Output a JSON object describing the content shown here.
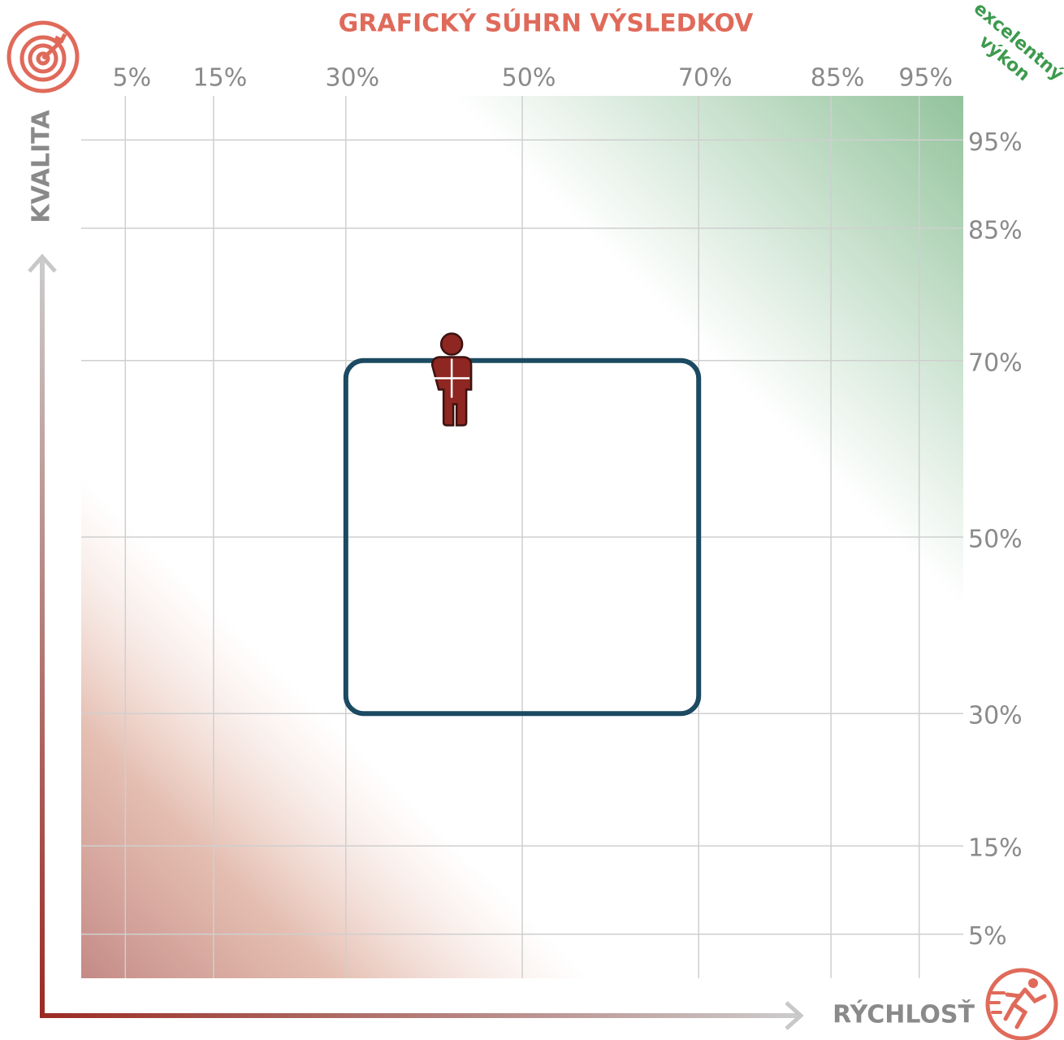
{
  "chart_data": {
    "type": "scatter",
    "title": "GRAFICKÝ SÚHRN VÝSLEDKOV",
    "xlabel": "RÝCHLOSŤ",
    "ylabel": "KVALITA",
    "annotation": [
      "excelentný",
      "výkon"
    ],
    "xlim": [
      0,
      100
    ],
    "ylim": [
      0,
      100
    ],
    "xticks": [
      {
        "value": 5,
        "label": "5%"
      },
      {
        "value": 15,
        "label": "15%"
      },
      {
        "value": 30,
        "label": "30%"
      },
      {
        "value": 50,
        "label": "50%"
      },
      {
        "value": 70,
        "label": "70%"
      },
      {
        "value": 85,
        "label": "85%"
      },
      {
        "value": 95,
        "label": "95%"
      }
    ],
    "yticks": [
      {
        "value": 5,
        "label": "5%"
      },
      {
        "value": 15,
        "label": "15%"
      },
      {
        "value": 30,
        "label": "30%"
      },
      {
        "value": 50,
        "label": "50%"
      },
      {
        "value": 70,
        "label": "70%"
      },
      {
        "value": 85,
        "label": "85%"
      },
      {
        "value": 95,
        "label": "95%"
      }
    ],
    "grid": true,
    "box": {
      "x": [
        30,
        70
      ],
      "y": [
        30,
        70
      ],
      "color": "#1b4a62"
    },
    "series": [
      {
        "x": [
          42
        ],
        "values": [
          68
        ],
        "color": "#8e2621"
      }
    ]
  }
}
